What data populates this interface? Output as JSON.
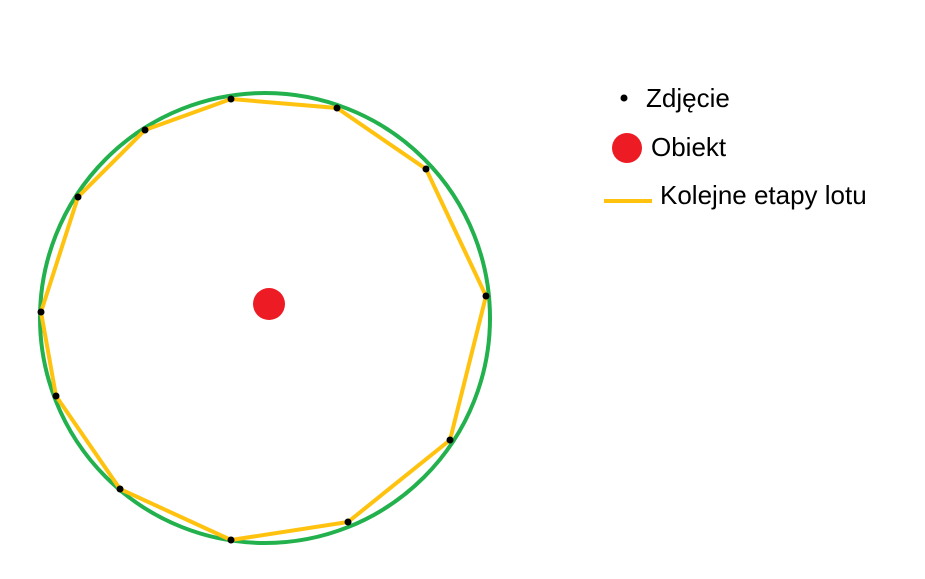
{
  "diagram": {
    "colors": {
      "orbit": "#22b14c",
      "flight_path": "#ffc20e",
      "photo_point": "#000000",
      "object": "#ed1c24",
      "background": "#ffffff"
    },
    "photo_point_count": 12
  },
  "legend": {
    "photo_label": "Zdjęcie",
    "object_label": "Obiekt",
    "flight_label": "Kolejne etapy lotu"
  }
}
